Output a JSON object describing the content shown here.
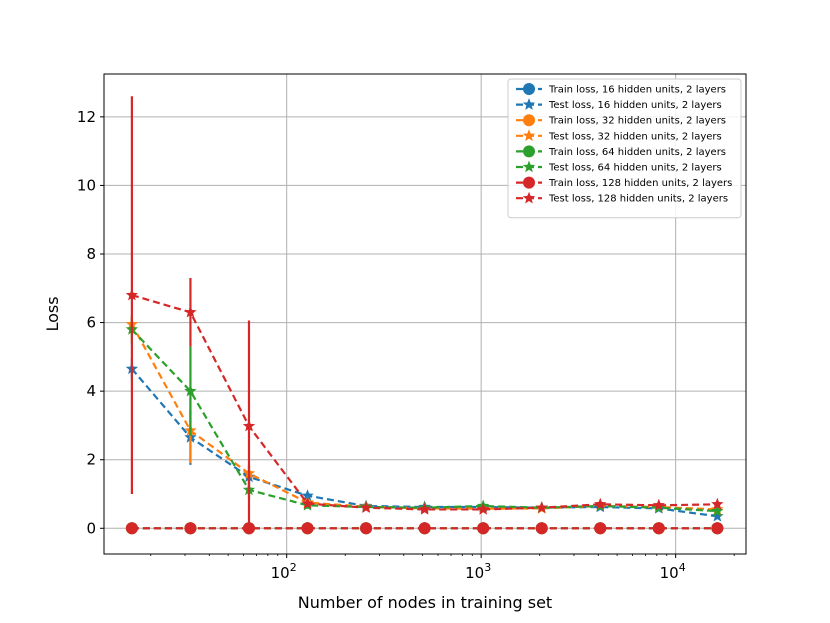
{
  "chart_data": {
    "type": "line",
    "xscale": "log",
    "title": "",
    "xlabel": "Number of nodes in training set",
    "ylabel": "Loss",
    "xlim": [
      11.5,
      23000
    ],
    "ylim": [
      -0.75,
      13.25
    ],
    "yticks": [
      0,
      2,
      4,
      6,
      8,
      10,
      12
    ],
    "xticks": [
      {
        "value": 100,
        "base": "10",
        "exp": "2"
      },
      {
        "value": 1000,
        "base": "10",
        "exp": "3"
      },
      {
        "value": 10000,
        "base": "10",
        "exp": "4"
      }
    ],
    "grid": true,
    "legend_position": "upper-right",
    "x": [
      16,
      32,
      64,
      128,
      256,
      512,
      1024,
      2048,
      4096,
      8192,
      16384
    ],
    "series": [
      {
        "name": "Train loss, 16 hidden units, 2 layers",
        "color": "#1f77b4",
        "marker": "circle",
        "values": [
          0,
          0,
          0,
          0,
          0,
          0,
          0,
          0,
          0,
          0,
          0
        ]
      },
      {
        "name": "Test loss, 16 hidden units, 2 layers",
        "color": "#1f77b4",
        "marker": "star",
        "values": [
          4.65,
          2.65,
          1.5,
          0.95,
          0.65,
          0.62,
          0.62,
          0.6,
          0.62,
          0.58,
          0.35
        ],
        "errors": [
          0.3,
          0.8,
          0.3,
          0.1,
          0.05,
          0.05,
          0.05,
          0.05,
          0.05,
          0.05,
          0.05
        ]
      },
      {
        "name": "Train loss, 32 hidden units, 2 layers",
        "color": "#ff7f0e",
        "marker": "circle",
        "values": [
          0,
          0,
          0,
          0,
          0,
          0,
          0,
          0,
          0,
          0,
          0
        ]
      },
      {
        "name": "Test loss, 32 hidden units, 2 layers",
        "color": "#ff7f0e",
        "marker": "star",
        "values": [
          5.95,
          2.85,
          1.6,
          0.75,
          0.63,
          0.58,
          0.57,
          0.58,
          0.65,
          0.62,
          0.55
        ],
        "errors": [
          0.2,
          0.95,
          0.25,
          0.1,
          0.05,
          0.05,
          0.05,
          0.05,
          0.05,
          0.05,
          0.05
        ]
      },
      {
        "name": "Train loss, 64 hidden units, 2 layers",
        "color": "#2ca02c",
        "marker": "circle",
        "values": [
          0,
          0,
          0,
          0,
          0,
          0,
          0,
          0,
          0,
          0,
          0
        ]
      },
      {
        "name": "Test loss, 64 hidden units, 2 layers",
        "color": "#2ca02c",
        "marker": "star",
        "values": [
          5.8,
          4.0,
          1.12,
          0.67,
          0.62,
          0.6,
          0.65,
          0.6,
          0.65,
          0.6,
          0.5
        ],
        "errors": [
          0.4,
          1.3,
          0.25,
          0.1,
          0.05,
          0.05,
          0.05,
          0.05,
          0.05,
          0.05,
          0.05
        ]
      },
      {
        "name": "Train loss, 128 hidden units, 2 layers",
        "color": "#d62728",
        "marker": "circle",
        "values": [
          0,
          0,
          0,
          0,
          0,
          0,
          0,
          0,
          0,
          0,
          0
        ]
      },
      {
        "name": "Test loss, 128 hidden units, 2 layers",
        "color": "#d62728",
        "marker": "star",
        "values": [
          6.8,
          6.3,
          2.98,
          0.72,
          0.6,
          0.55,
          0.55,
          0.6,
          0.7,
          0.67,
          0.7
        ],
        "errors": [
          5.8,
          1.0,
          3.08,
          0.1,
          0.05,
          0.05,
          0.05,
          0.05,
          0.05,
          0.05,
          0.05
        ]
      }
    ]
  }
}
